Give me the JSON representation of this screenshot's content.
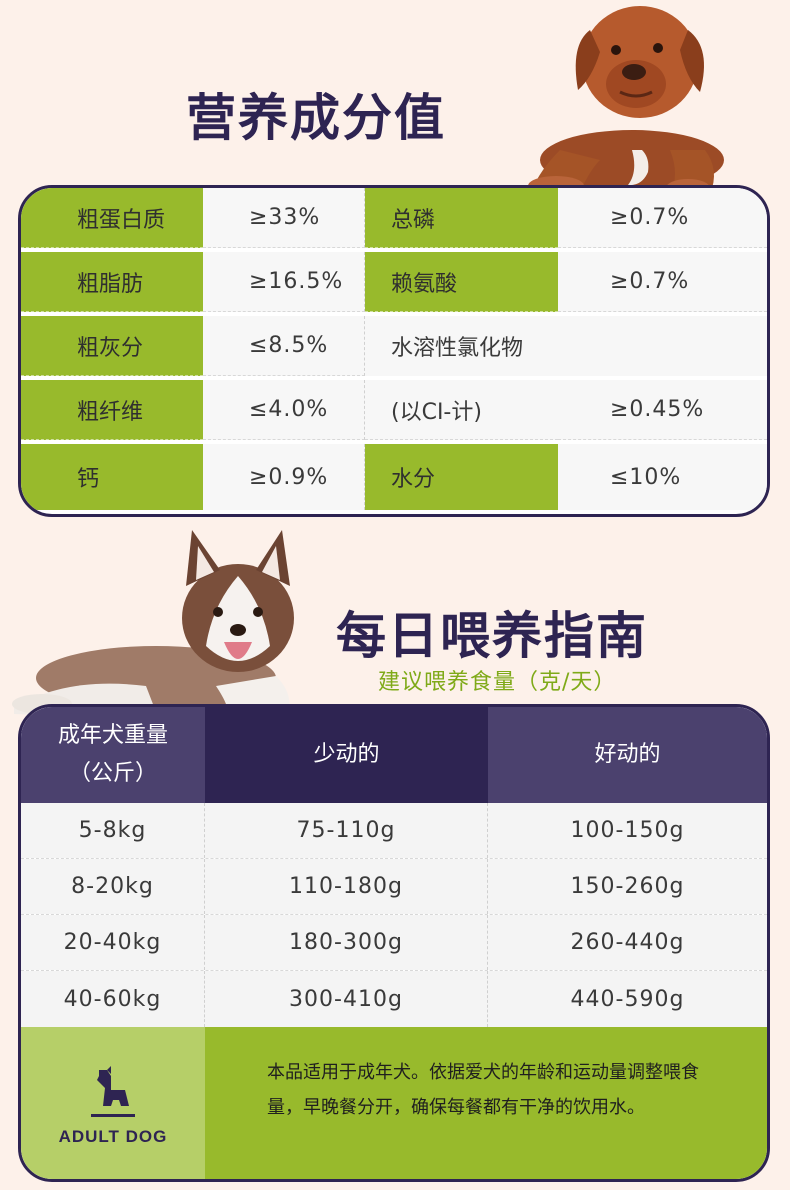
{
  "nutrition": {
    "title": "营养成分值",
    "rows": [
      {
        "l1": "粗蛋白质",
        "v1": "≥33%",
        "l2": "总磷",
        "v2": "≥0.7%"
      },
      {
        "l1": "粗脂肪",
        "v1": "≥16.5%",
        "l2": "赖氨酸",
        "v2": "≥0.7%"
      },
      {
        "l1": "粗灰分",
        "v1": "≤8.5%",
        "l2": "水溶性氯化物",
        "v2": ""
      },
      {
        "l1": "粗纤维",
        "v1": "≤4.0%",
        "l2": "(以CI-计)",
        "v2": "≥0.45%"
      },
      {
        "l1": "钙",
        "v1": "≥0.9%",
        "l2": "水分",
        "v2": "≤10%"
      }
    ]
  },
  "feeding": {
    "title": "每日喂养指南",
    "subtitle": "建议喂养食量（克/天）",
    "headers": {
      "weight_line1": "成年犬重量",
      "weight_line2": "（公斤）",
      "low": "少动的",
      "high": "好动的"
    },
    "rows": [
      {
        "w": "5-8kg",
        "low": "75-110g",
        "high": "100-150g"
      },
      {
        "w": "8-20kg",
        "low": "110-180g",
        "high": "150-260g"
      },
      {
        "w": "20-40kg",
        "low": "180-300g",
        "high": "260-440g"
      },
      {
        "w": "40-60kg",
        "low": "300-410g",
        "high": "440-590g"
      }
    ],
    "badge": "ADULT DOG",
    "note": "本品适用于成年犬。依据爱犬的年龄和运动量调整喂食量，早晚餐分开，确保每餐都有干净的饮用水。"
  },
  "colors": {
    "navy": "#2e2452",
    "purple": "#4b416e",
    "green": "#98ba2c",
    "light_green": "#b6cf68",
    "background": "#fdf1ea"
  },
  "icons": [
    "dog-sitting-icon"
  ]
}
